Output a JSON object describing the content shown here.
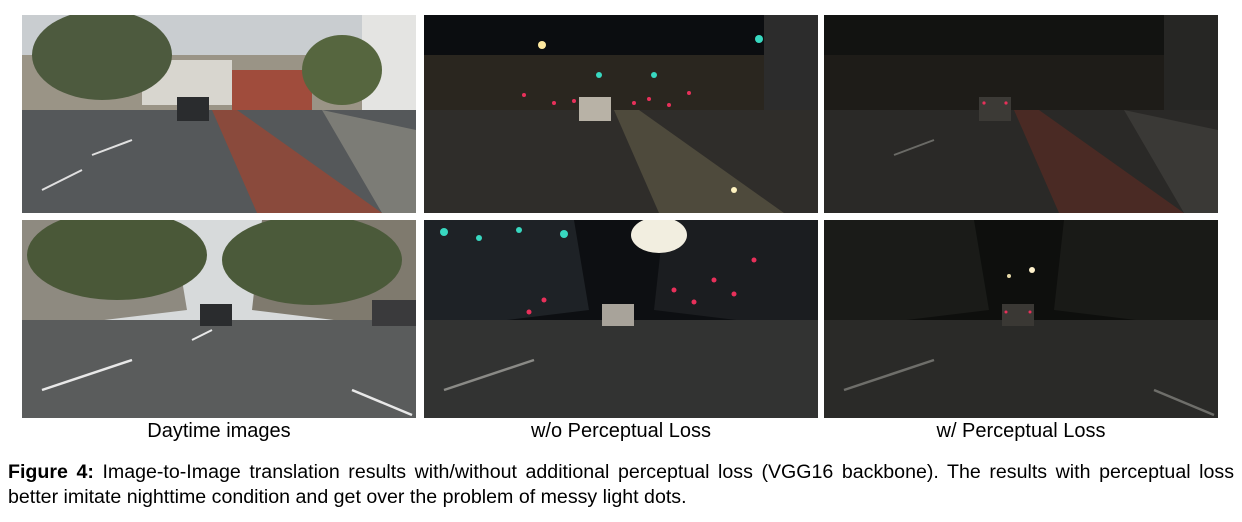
{
  "figure": {
    "columns": [
      {
        "label": "Daytime images"
      },
      {
        "label": "w/o Perceptual Loss"
      },
      {
        "label": "w/ Perceptual Loss"
      }
    ],
    "caption_label": "Figure 4:",
    "caption_text": "Image-to-Image translation results with/without additional perceptual loss (VGG16 backbone). The results with perceptual loss better imitate nighttime condition and get over the problem of messy light dots."
  },
  "colors": {
    "day_sky": "#c9cdd0",
    "day_road": "#55585a",
    "night_sky": "#0b0d10",
    "night_road": "#2b2a29",
    "bike_lane": "#8a4a3c",
    "light_dots": "#e8305a",
    "teal_lights": "#38d8c0"
  }
}
